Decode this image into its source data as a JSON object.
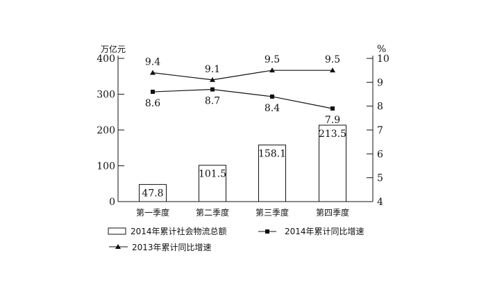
{
  "chart_data": {
    "type": "bar+line",
    "categories": [
      "第一季度",
      "第二季度",
      "第三季度",
      "第四季度"
    ],
    "left_axis": {
      "unit": "万亿元",
      "ylim": [
        0,
        400
      ],
      "ticks": [
        0,
        100,
        200,
        300,
        400
      ]
    },
    "right_axis": {
      "unit": "%",
      "ylim": [
        4,
        10
      ],
      "ticks": [
        4,
        5,
        6,
        7,
        8,
        9,
        10
      ]
    },
    "series": [
      {
        "name": "2014年累计社会物流总额",
        "kind": "bar",
        "axis": "left",
        "values": [
          47.8,
          101.5,
          158.1,
          213.5
        ]
      },
      {
        "name": "2014年累计同比增速",
        "kind": "line",
        "marker": "square",
        "axis": "right",
        "values": [
          8.6,
          8.7,
          8.4,
          7.9
        ]
      },
      {
        "name": "2013年累计同比增速",
        "kind": "line",
        "marker": "triangle",
        "axis": "right",
        "values": [
          9.4,
          9.1,
          9.5,
          9.5
        ]
      }
    ],
    "grid": false,
    "legend_position": "bottom",
    "colors": {
      "line": "#111111",
      "bar_fill": "#ffffff"
    }
  }
}
